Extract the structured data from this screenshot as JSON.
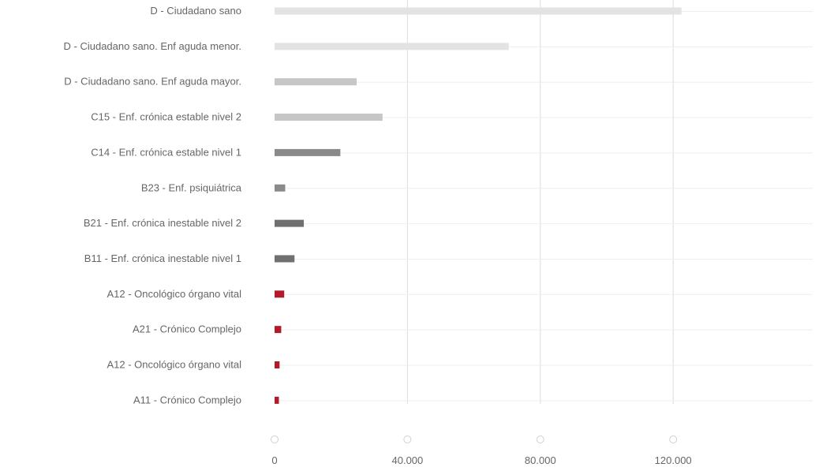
{
  "chart_data": {
    "type": "bar",
    "orientation": "horizontal",
    "title": "",
    "xlabel": "",
    "ylabel": "",
    "categories": [
      "D - Ciudadano sano",
      "D - Ciudadano sano. Enf aguda menor.",
      "D - Ciudadano sano. Enf aguda mayor.",
      "C15 - Enf. crónica estable nivel 2",
      "C14 - Enf. crónica estable nivel 1",
      "B23 - Enf. psiquiátrica",
      "B21 - Enf. crónica inestable nivel 2",
      "B11 - Enf. crónica inestable nivel 1",
      "A12 - Oncológico órgano vital",
      "A21 - Crónico Complejo",
      "A12 - Oncológico órgano vital",
      "A11 - Crónico Complejo"
    ],
    "values": [
      122500,
      70500,
      24700,
      32500,
      19800,
      3200,
      8800,
      6000,
      2900,
      2000,
      1500,
      1300
    ],
    "colors": [
      "#e3e3e3",
      "#e3e3e3",
      "#c6c6c6",
      "#c6c6c6",
      "#8a8a8a",
      "#8a8a8a",
      "#707070",
      "#707070",
      "#b01a2a",
      "#b01a2a",
      "#b01a2a",
      "#b01a2a"
    ],
    "xlim": [
      0,
      162000
    ],
    "xticks": [
      0,
      40000,
      80000,
      120000
    ],
    "xtick_labels": [
      "0",
      "40.000",
      "80.000",
      "120.000"
    ],
    "grid": true,
    "legend": "none"
  }
}
